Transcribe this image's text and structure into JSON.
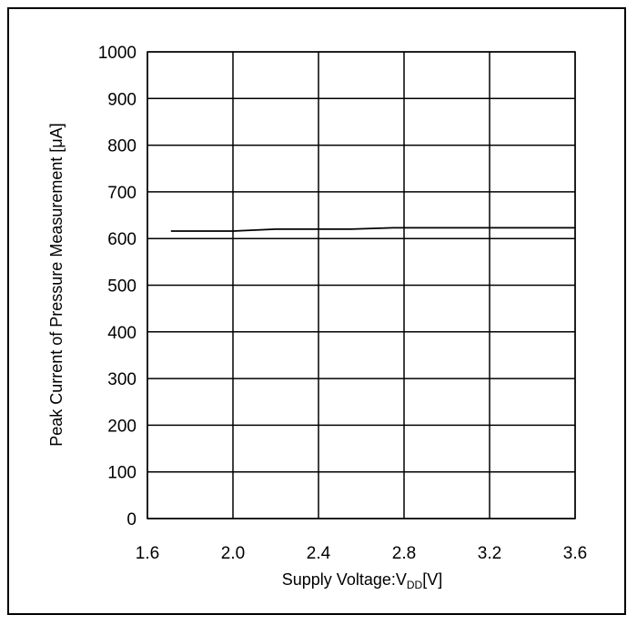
{
  "chart_data": {
    "type": "line",
    "title": "",
    "xlabel": {
      "main": "Supply Voltage:V",
      "sub": "DD",
      "tail": "[V]"
    },
    "ylabel": "Peak Current of Pressure Measurement [μA]",
    "xlim": [
      1.6,
      3.6
    ],
    "ylim": [
      0,
      1000
    ],
    "x_ticks": [
      1.6,
      2.0,
      2.4,
      2.8,
      3.2,
      3.6
    ],
    "x_tick_labels": [
      "1.6",
      "2.0",
      "2.4",
      "2.8",
      "3.2",
      "3.6"
    ],
    "y_ticks": [
      0,
      100,
      200,
      300,
      400,
      500,
      600,
      700,
      800,
      900,
      1000
    ],
    "y_tick_labels": [
      "0",
      "100",
      "200",
      "300",
      "400",
      "500",
      "600",
      "700",
      "800",
      "900",
      "1000"
    ],
    "grid": true,
    "legend": "none",
    "series": [
      {
        "color": "#000000",
        "x": [
          1.71,
          1.8,
          2.0,
          2.2,
          2.4,
          2.55,
          2.75,
          3.0,
          3.2,
          3.4,
          3.6
        ],
        "values": [
          616,
          616,
          616,
          620,
          620,
          620,
          623,
          623,
          623,
          623,
          623
        ]
      }
    ]
  }
}
